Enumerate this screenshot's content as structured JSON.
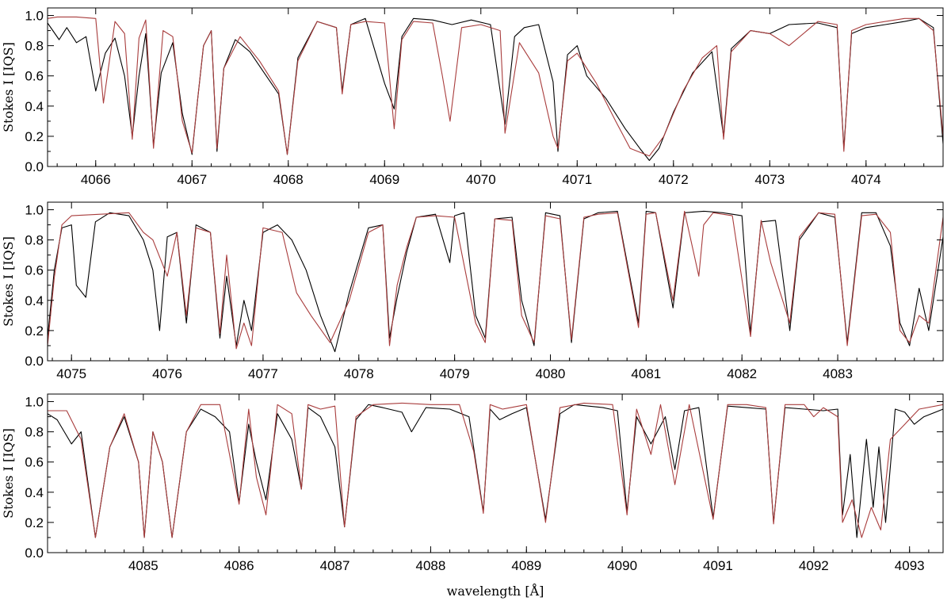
{
  "chart_data": [
    {
      "type": "line",
      "xlim": [
        4065.5,
        4074.8
      ],
      "ylim": [
        0.0,
        1.05
      ],
      "xticks": [
        "4066",
        "4067",
        "4068",
        "4069",
        "4070",
        "4071",
        "4072",
        "4073",
        "4074"
      ],
      "yticks": [
        "0.0",
        "0.2",
        "0.4",
        "0.6",
        "0.8",
        "1.0"
      ],
      "ylabel": "Stokes I [IQS]",
      "xlabel": "",
      "series": [
        {
          "color": "#000000",
          "x": [
            4065.5,
            4065.62,
            4065.7,
            4065.8,
            4065.9,
            4066.0,
            4066.1,
            4066.2,
            4066.3,
            4066.38,
            4066.45,
            4066.52,
            4066.6,
            4066.68,
            4066.8,
            4066.9,
            4067.0,
            4067.06,
            4067.12,
            4067.2,
            4067.26,
            4067.33,
            4067.45,
            4067.6,
            4067.75,
            4067.9,
            4067.99,
            4068.1,
            4068.3,
            4068.5,
            4068.56,
            4068.65,
            4068.8,
            4069.0,
            4069.1,
            4069.18,
            4069.3,
            4069.5,
            4069.7,
            4069.9,
            4070.1,
            4070.25,
            4070.35,
            4070.45,
            4070.6,
            4070.75,
            4070.8,
            4070.9,
            4071.0,
            4071.1,
            4071.3,
            4071.5,
            4071.65,
            4071.75,
            4071.85,
            4072.0,
            4072.2,
            4072.4,
            4072.52,
            4072.6,
            4072.8,
            4073.0,
            4073.2,
            4073.5,
            4073.7,
            4073.77,
            4073.85,
            4074.0,
            4074.2,
            4074.4,
            4074.55,
            4074.7,
            4074.8
          ],
          "y": [
            0.95,
            0.84,
            0.92,
            0.82,
            0.86,
            0.5,
            0.75,
            0.85,
            0.6,
            0.2,
            0.6,
            0.88,
            0.14,
            0.62,
            0.82,
            0.35,
            0.08,
            0.45,
            0.8,
            0.9,
            0.1,
            0.65,
            0.84,
            0.76,
            0.62,
            0.48,
            0.08,
            0.72,
            0.96,
            0.92,
            0.5,
            0.94,
            0.98,
            0.55,
            0.38,
            0.86,
            0.98,
            0.97,
            0.94,
            0.97,
            0.94,
            0.28,
            0.86,
            0.92,
            0.94,
            0.56,
            0.1,
            0.74,
            0.8,
            0.6,
            0.45,
            0.25,
            0.12,
            0.04,
            0.12,
            0.36,
            0.62,
            0.76,
            0.2,
            0.78,
            0.9,
            0.88,
            0.94,
            0.95,
            0.92,
            0.12,
            0.88,
            0.92,
            0.94,
            0.96,
            0.98,
            0.92,
            0.15
          ]
        },
        {
          "color": "#a83c3c",
          "x": [
            4065.5,
            4065.6,
            4065.8,
            4066.0,
            4066.08,
            4066.2,
            4066.3,
            4066.38,
            4066.45,
            4066.52,
            4066.6,
            4066.7,
            4066.8,
            4066.9,
            4067.0,
            4067.06,
            4067.12,
            4067.2,
            4067.26,
            4067.33,
            4067.5,
            4067.7,
            4067.9,
            4067.99,
            4068.1,
            4068.3,
            4068.5,
            4068.56,
            4068.65,
            4068.8,
            4069.0,
            4069.1,
            4069.18,
            4069.3,
            4069.5,
            4069.6,
            4069.68,
            4069.8,
            4070.0,
            4070.2,
            4070.25,
            4070.4,
            4070.6,
            4070.75,
            4070.8,
            4070.9,
            4071.0,
            4071.2,
            4071.4,
            4071.55,
            4071.75,
            4071.9,
            4072.1,
            4072.3,
            4072.45,
            4072.52,
            4072.6,
            4072.8,
            4073.0,
            4073.2,
            4073.5,
            4073.7,
            4073.77,
            4073.85,
            4074.0,
            4074.2,
            4074.4,
            4074.55,
            4074.7,
            4074.8
          ],
          "y": [
            0.98,
            0.99,
            0.99,
            0.98,
            0.42,
            0.96,
            0.88,
            0.18,
            0.85,
            0.97,
            0.12,
            0.9,
            0.86,
            0.3,
            0.09,
            0.45,
            0.8,
            0.9,
            0.12,
            0.65,
            0.86,
            0.7,
            0.5,
            0.08,
            0.7,
            0.96,
            0.92,
            0.48,
            0.94,
            0.96,
            0.95,
            0.25,
            0.84,
            0.96,
            0.95,
            0.6,
            0.3,
            0.92,
            0.94,
            0.9,
            0.22,
            0.82,
            0.62,
            0.2,
            0.12,
            0.7,
            0.75,
            0.55,
            0.3,
            0.12,
            0.07,
            0.2,
            0.5,
            0.72,
            0.8,
            0.18,
            0.76,
            0.9,
            0.88,
            0.8,
            0.96,
            0.94,
            0.1,
            0.9,
            0.94,
            0.96,
            0.98,
            0.98,
            0.9,
            0.2
          ]
        }
      ]
    },
    {
      "type": "line",
      "xlim": [
        4074.75,
        4084.1
      ],
      "ylim": [
        0.0,
        1.05
      ],
      "xticks": [
        "4075",
        "4076",
        "4077",
        "4078",
        "4079",
        "4080",
        "4081",
        "4082",
        "4083"
      ],
      "yticks": [
        "0.0",
        "0.2",
        "0.4",
        "0.6",
        "0.8",
        "1.0"
      ],
      "ylabel": "Stokes I [IQS]",
      "xlabel": "",
      "series": [
        {
          "color": "#000000",
          "x": [
            4074.75,
            4074.82,
            4074.9,
            4075.0,
            4075.05,
            4075.15,
            4075.25,
            4075.4,
            4075.6,
            4075.75,
            4075.85,
            4075.92,
            4076.0,
            4076.1,
            4076.2,
            4076.3,
            4076.45,
            4076.55,
            4076.62,
            4076.72,
            4076.8,
            4076.88,
            4077.0,
            4077.15,
            4077.3,
            4077.45,
            4077.6,
            4077.75,
            4077.9,
            4078.1,
            4078.25,
            4078.32,
            4078.4,
            4078.5,
            4078.6,
            4078.8,
            4078.95,
            4079.0,
            4079.1,
            4079.22,
            4079.32,
            4079.42,
            4079.6,
            4079.7,
            4079.83,
            4079.95,
            4080.1,
            4080.22,
            4080.35,
            4080.5,
            4080.7,
            4080.92,
            4081.0,
            4081.1,
            4081.28,
            4081.4,
            4081.6,
            4081.8,
            4082.0,
            4082.09,
            4082.2,
            4082.35,
            4082.5,
            4082.6,
            4082.8,
            4082.97,
            4083.1,
            4083.25,
            4083.4,
            4083.55,
            4083.65,
            4083.75,
            4083.85,
            4083.95,
            4084.1
          ],
          "y": [
            0.15,
            0.6,
            0.88,
            0.9,
            0.5,
            0.42,
            0.92,
            0.98,
            0.96,
            0.8,
            0.6,
            0.2,
            0.82,
            0.85,
            0.25,
            0.9,
            0.85,
            0.15,
            0.56,
            0.1,
            0.4,
            0.2,
            0.85,
            0.9,
            0.8,
            0.6,
            0.3,
            0.06,
            0.45,
            0.88,
            0.9,
            0.15,
            0.42,
            0.72,
            0.95,
            0.97,
            0.65,
            0.96,
            0.98,
            0.3,
            0.15,
            0.94,
            0.95,
            0.4,
            0.1,
            0.98,
            0.96,
            0.12,
            0.94,
            0.98,
            0.99,
            0.25,
            0.99,
            0.98,
            0.35,
            0.98,
            0.99,
            0.98,
            0.96,
            0.18,
            0.92,
            0.93,
            0.2,
            0.8,
            0.98,
            0.95,
            0.12,
            0.98,
            0.98,
            0.76,
            0.25,
            0.1,
            0.48,
            0.2,
            0.82
          ]
        },
        {
          "color": "#a83c3c",
          "x": [
            4074.75,
            4074.82,
            4074.9,
            4075.0,
            4075.3,
            4075.6,
            4075.75,
            4075.85,
            4076.0,
            4076.1,
            4076.2,
            4076.3,
            4076.45,
            4076.55,
            4076.62,
            4076.72,
            4076.8,
            4076.88,
            4077.0,
            4077.2,
            4077.35,
            4077.5,
            4077.7,
            4077.9,
            4078.1,
            4078.25,
            4078.32,
            4078.4,
            4078.5,
            4078.6,
            4078.8,
            4079.0,
            4079.22,
            4079.32,
            4079.42,
            4079.6,
            4079.7,
            4079.83,
            4079.95,
            4080.1,
            4080.22,
            4080.35,
            4080.5,
            4080.7,
            4080.92,
            4081.0,
            4081.1,
            4081.28,
            4081.4,
            4081.55,
            4081.6,
            4081.7,
            4081.9,
            4082.09,
            4082.2,
            4082.3,
            4082.5,
            4082.6,
            4082.8,
            4082.97,
            4083.1,
            4083.25,
            4083.4,
            4083.55,
            4083.65,
            4083.75,
            4083.85,
            4083.95,
            4084.1
          ],
          "y": [
            0.1,
            0.55,
            0.9,
            0.96,
            0.97,
            0.98,
            0.85,
            0.8,
            0.56,
            0.85,
            0.3,
            0.88,
            0.85,
            0.18,
            0.7,
            0.08,
            0.25,
            0.1,
            0.88,
            0.85,
            0.45,
            0.3,
            0.12,
            0.4,
            0.85,
            0.9,
            0.1,
            0.5,
            0.75,
            0.95,
            0.96,
            0.95,
            0.25,
            0.12,
            0.94,
            0.93,
            0.3,
            0.12,
            0.96,
            0.94,
            0.14,
            0.95,
            0.97,
            0.98,
            0.22,
            0.97,
            0.98,
            0.4,
            0.99,
            0.56,
            0.9,
            0.98,
            0.96,
            0.16,
            0.93,
            0.65,
            0.25,
            0.82,
            0.98,
            0.97,
            0.1,
            0.96,
            0.97,
            0.85,
            0.2,
            0.12,
            0.3,
            0.25,
            0.95
          ]
        }
      ]
    },
    {
      "type": "line",
      "xlim": [
        4084.0,
        4093.35
      ],
      "ylim": [
        0.0,
        1.05
      ],
      "xticks": [
        "4085",
        "4086",
        "4087",
        "4088",
        "4089",
        "4090",
        "4091",
        "4092",
        "4093"
      ],
      "yticks": [
        "0.0",
        "0.2",
        "0.4",
        "0.6",
        "0.8",
        "1.0"
      ],
      "ylabel": "Stokes I [IQS]",
      "xlabel": "wavelength [Å]",
      "series": [
        {
          "color": "#000000",
          "x": [
            4084.0,
            4084.1,
            4084.25,
            4084.35,
            4084.5,
            4084.65,
            4084.8,
            4084.95,
            4085.01,
            4085.1,
            4085.2,
            4085.3,
            4085.45,
            4085.6,
            4085.75,
            4085.9,
            4086.0,
            4086.1,
            4086.18,
            4086.28,
            4086.4,
            4086.55,
            4086.65,
            4086.72,
            4086.85,
            4087.0,
            4087.1,
            4087.22,
            4087.35,
            4087.5,
            4087.7,
            4087.8,
            4087.95,
            4088.2,
            4088.4,
            4088.55,
            4088.62,
            4088.72,
            4088.85,
            4089.0,
            4089.2,
            4089.35,
            4089.5,
            4089.8,
            4089.95,
            4090.05,
            4090.15,
            4090.3,
            4090.45,
            4090.55,
            4090.65,
            4090.8,
            4090.95,
            4091.1,
            4091.3,
            4091.5,
            4091.58,
            4091.7,
            4091.9,
            4092.1,
            4092.25,
            4092.3,
            4092.38,
            4092.45,
            4092.55,
            4092.62,
            4092.68,
            4092.75,
            4092.85,
            4092.95,
            4093.05,
            4093.15,
            4093.35
          ],
          "y": [
            0.92,
            0.88,
            0.72,
            0.8,
            0.1,
            0.7,
            0.9,
            0.6,
            0.1,
            0.8,
            0.6,
            0.1,
            0.8,
            0.95,
            0.9,
            0.8,
            0.33,
            0.85,
            0.6,
            0.35,
            0.92,
            0.75,
            0.42,
            0.96,
            0.9,
            0.7,
            0.17,
            0.88,
            0.98,
            0.96,
            0.93,
            0.8,
            0.96,
            0.95,
            0.9,
            0.27,
            0.95,
            0.88,
            0.92,
            0.96,
            0.22,
            0.92,
            0.98,
            0.96,
            0.94,
            0.27,
            0.9,
            0.72,
            0.9,
            0.55,
            0.94,
            0.96,
            0.23,
            0.97,
            0.96,
            0.95,
            0.2,
            0.96,
            0.95,
            0.94,
            0.95,
            0.25,
            0.65,
            0.1,
            0.75,
            0.3,
            0.7,
            0.2,
            0.95,
            0.93,
            0.85,
            0.9,
            0.95
          ]
        },
        {
          "color": "#a83c3c",
          "x": [
            4084.0,
            4084.2,
            4084.35,
            4084.5,
            4084.65,
            4084.8,
            4084.95,
            4085.01,
            4085.1,
            4085.2,
            4085.3,
            4085.45,
            4085.6,
            4085.8,
            4086.0,
            4086.1,
            4086.18,
            4086.28,
            4086.4,
            4086.55,
            4086.65,
            4086.72,
            4086.85,
            4087.0,
            4087.1,
            4087.22,
            4087.4,
            4087.7,
            4088.0,
            4088.3,
            4088.45,
            4088.55,
            4088.62,
            4088.75,
            4089.0,
            4089.2,
            4089.35,
            4089.6,
            4089.9,
            4090.05,
            4090.15,
            4090.3,
            4090.4,
            4090.55,
            4090.7,
            4090.95,
            4091.1,
            4091.3,
            4091.5,
            4091.58,
            4091.7,
            4091.9,
            4092.0,
            4092.1,
            4092.25,
            4092.3,
            4092.4,
            4092.5,
            4092.6,
            4092.7,
            4092.8,
            4092.95,
            4093.1,
            4093.35
          ],
          "y": [
            0.94,
            0.94,
            0.75,
            0.1,
            0.7,
            0.92,
            0.6,
            0.1,
            0.8,
            0.6,
            0.1,
            0.8,
            0.98,
            0.98,
            0.32,
            0.95,
            0.5,
            0.25,
            0.98,
            0.92,
            0.42,
            0.98,
            0.95,
            0.97,
            0.17,
            0.9,
            0.98,
            0.99,
            0.98,
            0.98,
            0.67,
            0.26,
            0.98,
            0.95,
            0.98,
            0.2,
            0.96,
            0.99,
            0.98,
            0.25,
            0.95,
            0.65,
            0.98,
            0.45,
            0.98,
            0.22,
            0.98,
            0.98,
            0.96,
            0.19,
            0.98,
            0.98,
            0.9,
            0.96,
            0.9,
            0.2,
            0.35,
            0.1,
            0.3,
            0.15,
            0.75,
            0.85,
            0.95,
            0.98
          ]
        }
      ]
    }
  ]
}
